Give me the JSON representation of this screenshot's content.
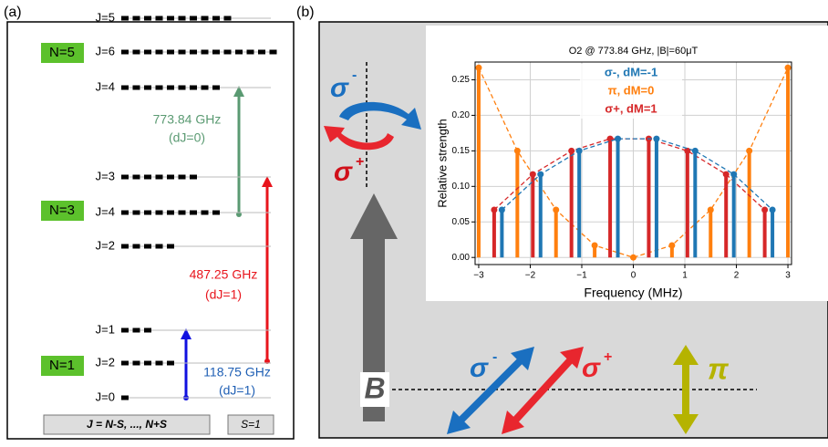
{
  "panel_a": {
    "label": "(a)",
    "levels": [
      {
        "label": "J=5"
      },
      {
        "label": "J=6"
      },
      {
        "label": "J=4"
      },
      {
        "label": "J=3"
      },
      {
        "label": "J=4"
      },
      {
        "label": "J=2"
      },
      {
        "label": "J=1"
      },
      {
        "label": "J=2"
      },
      {
        "label": "J=0"
      }
    ],
    "n_labels": [
      "N=5",
      "N=3",
      "N=1"
    ],
    "transitions": [
      {
        "freq": "773.84 GHz",
        "dj": "(dJ=0)"
      },
      {
        "freq": "487.25 GHz",
        "dj": "(dJ=1)"
      },
      {
        "freq": "118.75 GHz",
        "dj": "(dJ=1)"
      }
    ],
    "footer": [
      "J = N-S, ..., N+S",
      "S=1"
    ]
  },
  "panel_b": {
    "label": "(b)",
    "sigma_minus_top": {
      "symbol": "σ",
      "sup": "-"
    },
    "sigma_plus_top": {
      "symbol": "σ",
      "sup": "+"
    },
    "b_field": "B",
    "sigma_minus_bottom": {
      "symbol": "σ",
      "sup": "-"
    },
    "sigma_plus_bottom": {
      "symbol": "σ",
      "sup": "+"
    },
    "pi": "π"
  },
  "chart_data": {
    "type": "stem",
    "title": "O2 @ 773.84 GHz, |B|=60μT",
    "x_label": "Frequency (MHz)",
    "y_label": "Relative strength",
    "xlim": [
      -3.07,
      3.07
    ],
    "ylim": [
      -0.01,
      0.275
    ],
    "grid": true,
    "xticks": [
      {
        "value": -3,
        "label": "−3"
      },
      {
        "value": -2,
        "label": "−2"
      },
      {
        "value": -1,
        "label": "−1"
      },
      0,
      1,
      2,
      3
    ],
    "yticks": [
      {
        "value": 0,
        "label": "0.00"
      },
      0.05,
      {
        "value": 0.1,
        "label": "0.10"
      },
      0.15,
      {
        "value": 0.2,
        "label": "0.20"
      },
      0.25
    ],
    "series": [
      {
        "name": "π, dM=0",
        "color": "#ff7f0e",
        "x": [
          -3,
          -2.25,
          -1.5,
          -0.75,
          0,
          0.75,
          1.5,
          2.25,
          3
        ],
        "values": [
          0.267,
          0.15,
          0.067,
          0.017,
          0,
          0.017,
          0.067,
          0.15,
          0.267
        ]
      },
      {
        "name": "σ+, dM=1",
        "color": "#d62728",
        "x": [
          -2.7,
          -1.95,
          -1.2,
          -0.45,
          0.3,
          1.05,
          1.8,
          2.55
        ],
        "values": [
          0.067,
          0.117,
          0.15,
          0.167,
          0.167,
          0.15,
          0.117,
          0.067
        ]
      },
      {
        "name": "σ-, dM=-1",
        "color": "#1f77b4",
        "x": [
          -2.55,
          -1.8,
          -1.05,
          -0.3,
          0.45,
          1.2,
          1.95,
          2.7
        ],
        "values": [
          0.067,
          0.117,
          0.15,
          0.167,
          0.167,
          0.15,
          0.117,
          0.067
        ]
      }
    ],
    "legend_order": [
      2,
      0,
      1
    ]
  }
}
